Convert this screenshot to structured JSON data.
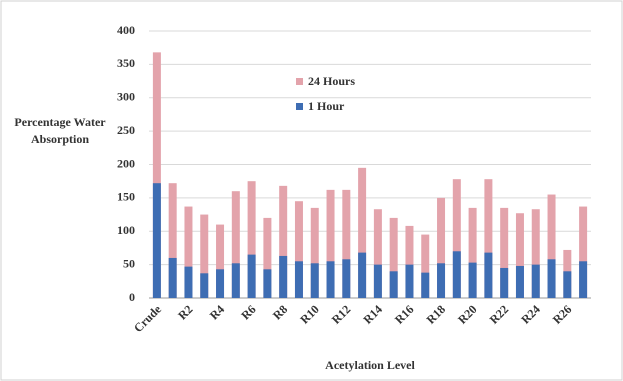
{
  "chart_data": {
    "type": "bar",
    "x_label": "Acetylation Level",
    "y_label": "Percentage Water Absorption",
    "categories": [
      "Crude",
      null,
      "R2",
      null,
      "R4",
      null,
      "R6",
      null,
      "R8",
      null,
      "R10",
      null,
      "R12",
      null,
      "R14",
      null,
      "R16",
      null,
      "R18",
      null,
      "R20",
      null,
      "R22",
      null,
      "R24",
      null,
      "R26",
      null
    ],
    "series": [
      {
        "name": "24 Hours",
        "color": "#e3a3ab",
        "values": [
          368,
          172,
          137,
          125,
          110,
          160,
          175,
          120,
          168,
          145,
          135,
          162,
          162,
          195,
          133,
          120,
          108,
          95,
          150,
          178,
          135,
          178,
          135,
          127,
          133,
          155,
          72,
          137
        ]
      },
      {
        "name": "1 Hour",
        "color": "#3e6db3",
        "values": [
          172,
          60,
          47,
          37,
          43,
          52,
          65,
          43,
          63,
          55,
          52,
          55,
          58,
          68,
          50,
          40,
          50,
          38,
          52,
          70,
          53,
          68,
          45,
          48,
          50,
          58,
          40,
          55
        ]
      }
    ],
    "ylim": [
      0,
      400
    ],
    "yticks": [
      0,
      50,
      100,
      150,
      200,
      250,
      300,
      350,
      400
    ],
    "grid": true
  }
}
